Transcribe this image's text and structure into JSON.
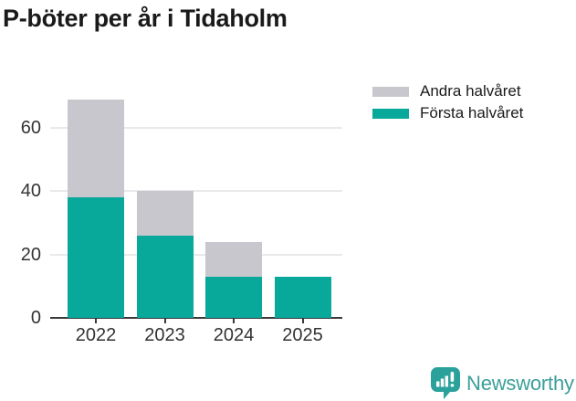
{
  "title": "P-böter per år i Tidaholm",
  "chart_data": {
    "type": "bar",
    "stacked": true,
    "title": "P-böter per år i Tidaholm",
    "categories": [
      "2022",
      "2023",
      "2024",
      "2025"
    ],
    "series": [
      {
        "name": "Första halvåret",
        "color": "#08a89b",
        "values": [
          38,
          26,
          13,
          13
        ]
      },
      {
        "name": "Andra halvåret",
        "color": "#c9c7ce",
        "values": [
          31,
          14,
          11,
          0
        ]
      }
    ],
    "totals": [
      69,
      40,
      24,
      13
    ],
    "xlabel": "",
    "ylabel": "",
    "yticks": [
      0,
      20,
      40,
      60
    ],
    "ylim": [
      0,
      73
    ],
    "grid": true,
    "legend_position": "upper-right-outside"
  },
  "legend": {
    "items": [
      {
        "label": "Andra halvåret",
        "color": "#c9c7ce"
      },
      {
        "label": "Första halvåret",
        "color": "#08a89b"
      }
    ]
  },
  "footer": {
    "brand": "Newsworthy",
    "logo_icon": "bar-chart-speech-bubble-icon",
    "brand_color": "#3a9f99"
  },
  "colors": {
    "first_half": "#08a89b",
    "second_half": "#c9c7ce",
    "axis": "#3a3a3a",
    "grid": "#e9e9ec",
    "tick_text": "#333333",
    "title_text": "#1a1a1a"
  }
}
